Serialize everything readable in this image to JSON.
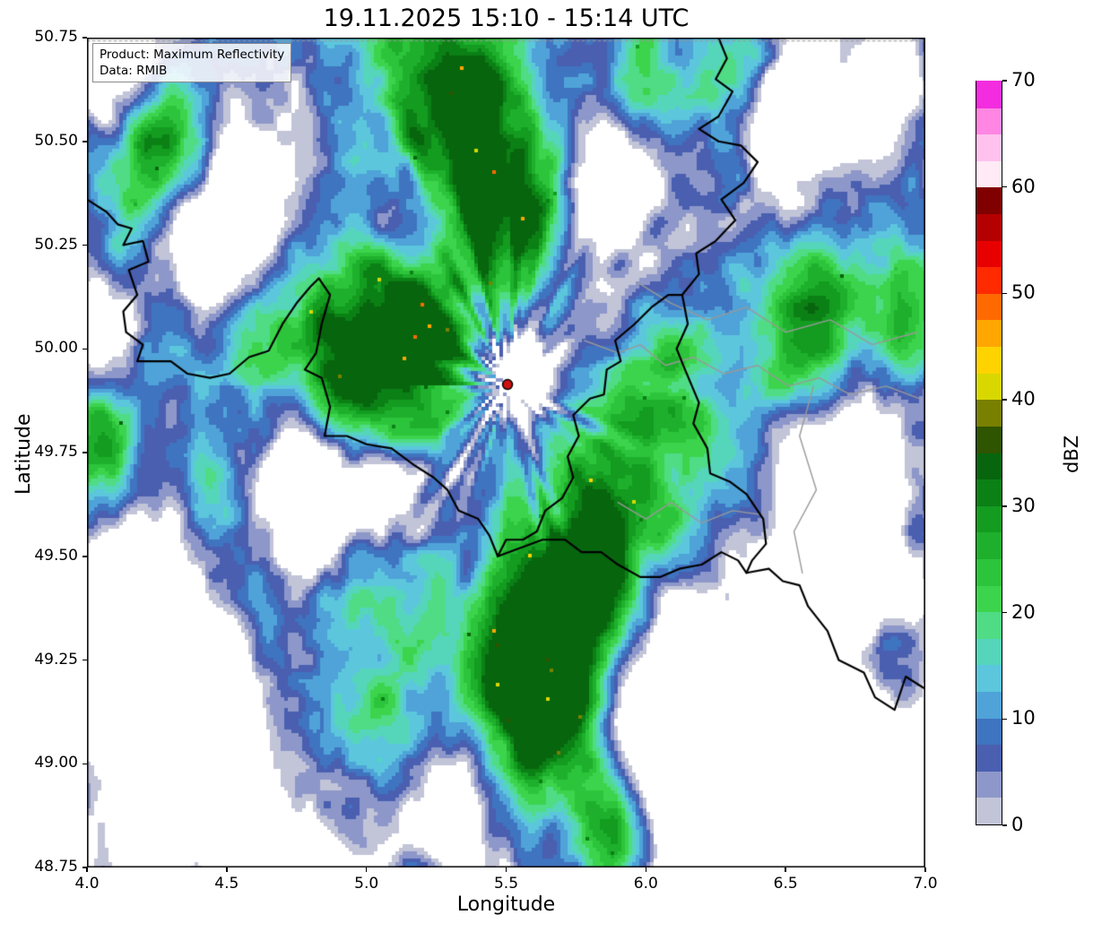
{
  "title": "19.11.2025 15:10 - 15:14 UTC",
  "info_box": {
    "line1": "Product: Maximum Reflectivity",
    "line2": "Data: RMIB"
  },
  "axes": {
    "xlabel": "Longitude",
    "ylabel": "Latitude",
    "xlim": [
      4.0,
      7.0
    ],
    "ylim": [
      48.75,
      50.75
    ],
    "xticks": [
      4.0,
      4.5,
      5.0,
      5.5,
      6.0,
      6.5,
      7.0
    ],
    "xtick_labels": [
      "4.0",
      "4.5",
      "5.0",
      "5.5",
      "6.0",
      "6.5",
      "7.0"
    ],
    "yticks": [
      50.75,
      50.5,
      50.25,
      50.0,
      49.75,
      49.5,
      49.25,
      49.0,
      48.75
    ],
    "ytick_labels": [
      "50.75",
      "50.50",
      "50.25",
      "50.00",
      "49.75",
      "49.50",
      "49.25",
      "49.00",
      "48.75"
    ]
  },
  "colorbar": {
    "label": "dBZ",
    "min": 0,
    "max": 70,
    "segment_step": 2.5,
    "ticks": [
      0,
      10,
      20,
      30,
      40,
      50,
      60,
      70
    ],
    "tick_labels": [
      "0",
      "10",
      "20",
      "30",
      "40",
      "50",
      "60",
      "70"
    ],
    "colors": [
      "#c2c4d8",
      "#8d97c9",
      "#4a5fb0",
      "#3f74c0",
      "#4fa3d8",
      "#5cc6dd",
      "#55d6bb",
      "#4fdc85",
      "#3cd44d",
      "#2cc43a",
      "#1eb02c",
      "#139c20",
      "#0b8015",
      "#07650d",
      "#2f5500",
      "#798000",
      "#d8d800",
      "#ffd300",
      "#ffa600",
      "#ff6a00",
      "#ff2a00",
      "#e80000",
      "#b40000",
      "#800000",
      "#ffeaf6",
      "#ffc2ee",
      "#ff86e2",
      "#f32ce0"
    ]
  },
  "radar_site": {
    "lon": 5.505,
    "lat": 49.914,
    "color": "#cc1111"
  },
  "chart_data": {
    "type": "heatmap",
    "description": "Weather radar maximum reflectivity composite (dBZ) over the Belgium / Luxembourg / western Germany region; widespread light precipitation 0-15 dBZ (blues) with embedded moderate cells 20-35 dBZ (greens); radar site marked by red dot near Wideumont.",
    "units": "dBZ",
    "value_range_observed": [
      0,
      35
    ],
    "x": {
      "label": "Longitude",
      "range": [
        4.0,
        7.0
      ]
    },
    "y": {
      "label": "Latitude",
      "range": [
        48.75,
        50.75
      ]
    },
    "domain_edge_lat": 50.742,
    "field": {
      "threshold": 0.4,
      "base_offset": 0.07,
      "blobs": [
        [
          5.18,
          50.08,
          0.22,
          0.5
        ],
        [
          4.93,
          50.0,
          0.13,
          0.32
        ],
        [
          4.6,
          50.02,
          0.12,
          0.55
        ],
        [
          4.3,
          50.02,
          0.1,
          0.35
        ],
        [
          4.05,
          49.8,
          0.1,
          0.5
        ],
        [
          4.28,
          50.5,
          0.12,
          0.45
        ],
        [
          4.15,
          50.28,
          0.08,
          0.3
        ],
        [
          5.3,
          50.58,
          0.2,
          0.38
        ],
        [
          5.55,
          50.35,
          0.15,
          0.25
        ],
        [
          6.0,
          50.63,
          0.1,
          0.32
        ],
        [
          6.33,
          50.7,
          0.1,
          0.28
        ],
        [
          5.78,
          49.42,
          0.17,
          0.62
        ],
        [
          5.55,
          49.26,
          0.14,
          0.5
        ],
        [
          5.68,
          49.05,
          0.13,
          0.35
        ],
        [
          5.88,
          48.82,
          0.13,
          0.38
        ],
        [
          6.08,
          49.77,
          0.14,
          0.3
        ],
        [
          6.6,
          50.06,
          0.14,
          0.42
        ],
        [
          6.92,
          50.05,
          0.1,
          0.35
        ],
        [
          6.88,
          49.25,
          0.1,
          0.28
        ],
        [
          4.75,
          49.33,
          0.15,
          0.3
        ],
        [
          4.45,
          49.7,
          0.12,
          0.3
        ],
        [
          5.05,
          49.45,
          0.12,
          0.28
        ],
        [
          5.35,
          50.55,
          0.45,
          0.18
        ],
        [
          5.9,
          49.75,
          0.5,
          0.12
        ],
        [
          5.35,
          49.1,
          0.35,
          0.15
        ],
        [
          5.56,
          49.94,
          0.09,
          -0.55
        ],
        [
          5.75,
          50.1,
          0.1,
          -0.25
        ],
        [
          5.12,
          50.31,
          0.15,
          -0.4
        ],
        [
          4.47,
          50.26,
          0.13,
          -0.42
        ],
        [
          4.09,
          50.67,
          0.1,
          -0.35
        ],
        [
          4.77,
          49.64,
          0.13,
          -0.48
        ],
        [
          5.06,
          49.66,
          0.08,
          -0.3
        ],
        [
          4.35,
          49.12,
          0.25,
          -0.52
        ],
        [
          4.12,
          49.45,
          0.13,
          -0.35
        ],
        [
          5.3,
          48.9,
          0.11,
          -0.38
        ],
        [
          6.3,
          48.97,
          0.22,
          -0.5
        ],
        [
          6.1,
          49.15,
          0.13,
          -0.33
        ],
        [
          6.75,
          49.63,
          0.16,
          -0.45
        ],
        [
          6.5,
          50.5,
          0.14,
          -0.38
        ],
        [
          6.85,
          50.6,
          0.12,
          -0.3
        ],
        [
          5.85,
          50.32,
          0.1,
          -0.28
        ],
        [
          6.55,
          49.33,
          0.12,
          -0.3
        ],
        [
          6.6,
          49.15,
          0.4,
          -0.18
        ]
      ]
    },
    "borders": {
      "country": [
        [
          [
            4.0,
            50.36
          ],
          [
            4.07,
            50.33
          ],
          [
            4.11,
            50.3
          ],
          [
            4.16,
            50.29
          ],
          [
            4.13,
            50.25
          ],
          [
            4.2,
            50.26
          ],
          [
            4.22,
            50.21
          ],
          [
            4.15,
            50.19
          ],
          [
            4.18,
            50.13
          ],
          [
            4.13,
            50.09
          ],
          [
            4.14,
            50.04
          ],
          [
            4.2,
            50.01
          ],
          [
            4.18,
            49.97
          ],
          [
            4.3,
            49.97
          ],
          [
            4.36,
            49.94
          ],
          [
            4.44,
            49.93
          ],
          [
            4.51,
            49.94
          ],
          [
            4.58,
            49.98
          ],
          [
            4.65,
            49.995
          ],
          [
            4.7,
            50.06
          ],
          [
            4.75,
            50.11
          ],
          [
            4.8,
            50.15
          ],
          [
            4.83,
            50.17
          ],
          [
            4.87,
            50.13
          ],
          [
            4.84,
            50.06
          ],
          [
            4.82,
            49.99
          ],
          [
            4.78,
            49.95
          ],
          [
            4.84,
            49.93
          ],
          [
            4.87,
            49.86
          ],
          [
            4.85,
            49.79
          ],
          [
            4.93,
            49.79
          ],
          [
            5.0,
            49.77
          ],
          [
            5.09,
            49.76
          ],
          [
            5.17,
            49.72
          ],
          [
            5.24,
            49.69
          ],
          [
            5.29,
            49.66
          ],
          [
            5.33,
            49.61
          ],
          [
            5.4,
            49.59
          ],
          [
            5.44,
            49.55
          ],
          [
            5.47,
            49.5
          ]
        ],
        [
          [
            5.47,
            49.5
          ],
          [
            5.5,
            49.54
          ],
          [
            5.56,
            49.54
          ],
          [
            5.61,
            49.56
          ],
          [
            5.64,
            49.61
          ],
          [
            5.7,
            49.64
          ],
          [
            5.74,
            49.69
          ],
          [
            5.72,
            49.74
          ],
          [
            5.76,
            49.79
          ],
          [
            5.74,
            49.84
          ],
          [
            5.8,
            49.88
          ],
          [
            5.85,
            49.89
          ],
          [
            5.86,
            49.95
          ],
          [
            5.91,
            49.97
          ],
          [
            5.89,
            50.02
          ],
          [
            5.96,
            50.06
          ],
          [
            6.02,
            50.1
          ],
          [
            6.08,
            50.13
          ],
          [
            6.13,
            50.13
          ]
        ],
        [
          [
            6.13,
            50.13
          ],
          [
            6.15,
            50.06
          ],
          [
            6.11,
            50.0
          ],
          [
            6.14,
            49.95
          ],
          [
            6.19,
            49.87
          ],
          [
            6.17,
            49.82
          ],
          [
            6.22,
            49.76
          ],
          [
            6.23,
            49.7
          ],
          [
            6.3,
            49.68
          ],
          [
            6.36,
            49.65
          ],
          [
            6.42,
            49.59
          ],
          [
            6.43,
            49.53
          ],
          [
            6.38,
            49.49
          ],
          [
            6.36,
            49.46
          ]
        ],
        [
          [
            5.47,
            49.5
          ],
          [
            5.55,
            49.52
          ],
          [
            5.63,
            49.54
          ],
          [
            5.71,
            49.54
          ],
          [
            5.77,
            49.51
          ],
          [
            5.84,
            49.51
          ],
          [
            5.9,
            49.48
          ],
          [
            5.98,
            49.45
          ],
          [
            6.05,
            49.45
          ],
          [
            6.12,
            49.47
          ],
          [
            6.2,
            49.48
          ],
          [
            6.27,
            49.51
          ],
          [
            6.33,
            49.49
          ],
          [
            6.36,
            49.46
          ],
          [
            6.44,
            49.47
          ],
          [
            6.49,
            49.44
          ],
          [
            6.55,
            49.43
          ],
          [
            6.58,
            49.38
          ],
          [
            6.65,
            49.32
          ],
          [
            6.69,
            49.25
          ],
          [
            6.78,
            49.22
          ],
          [
            6.82,
            49.16
          ],
          [
            6.89,
            49.13
          ],
          [
            6.93,
            49.21
          ],
          [
            7.0,
            49.18
          ]
        ],
        [
          [
            6.13,
            50.13
          ],
          [
            6.19,
            50.18
          ],
          [
            6.18,
            50.23
          ],
          [
            6.25,
            50.26
          ],
          [
            6.32,
            50.31
          ],
          [
            6.27,
            50.36
          ],
          [
            6.35,
            50.4
          ],
          [
            6.4,
            50.45
          ],
          [
            6.34,
            50.49
          ],
          [
            6.26,
            50.5
          ],
          [
            6.19,
            50.53
          ],
          [
            6.26,
            50.56
          ],
          [
            6.31,
            50.62
          ],
          [
            6.25,
            50.65
          ],
          [
            6.29,
            50.7
          ],
          [
            6.26,
            50.75
          ]
        ]
      ],
      "admin": [
        [
          [
            5.78,
            50.02
          ],
          [
            5.9,
            49.99
          ],
          [
            5.98,
            50.01
          ],
          [
            6.07,
            49.96
          ],
          [
            6.17,
            49.98
          ],
          [
            6.28,
            49.94
          ],
          [
            6.4,
            49.96
          ],
          [
            6.51,
            49.91
          ],
          [
            6.62,
            49.93
          ],
          [
            6.73,
            49.89
          ],
          [
            6.86,
            49.91
          ],
          [
            6.98,
            49.88
          ]
        ],
        [
          [
            5.9,
            49.63
          ],
          [
            6.0,
            49.59
          ],
          [
            6.09,
            49.63
          ],
          [
            6.2,
            49.58
          ],
          [
            6.31,
            49.61
          ],
          [
            6.42,
            49.6
          ]
        ],
        [
          [
            6.6,
            49.91
          ],
          [
            6.55,
            49.79
          ],
          [
            6.61,
            49.66
          ],
          [
            6.53,
            49.56
          ],
          [
            6.56,
            49.46
          ]
        ],
        [
          [
            5.97,
            50.16
          ],
          [
            6.09,
            50.11
          ],
          [
            6.22,
            50.07
          ],
          [
            6.36,
            50.1
          ],
          [
            6.5,
            50.04
          ],
          [
            6.66,
            50.07
          ],
          [
            6.81,
            50.01
          ],
          [
            6.97,
            50.04
          ]
        ]
      ]
    }
  }
}
